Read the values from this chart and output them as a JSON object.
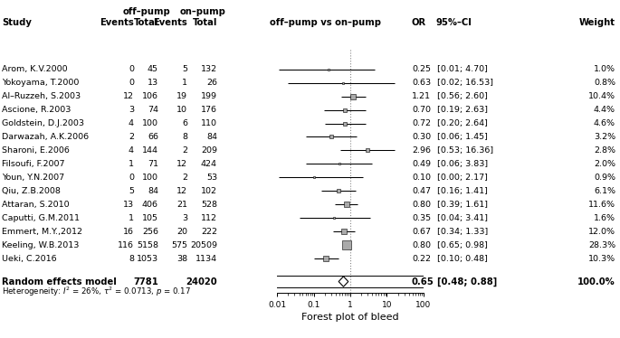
{
  "studies": [
    {
      "name": "Arom, K.V.2000",
      "off_events": 0,
      "off_total": 45,
      "on_events": 5,
      "on_total": 132,
      "or": 0.25,
      "ci_lo": 0.01,
      "ci_hi": 4.7,
      "weight": 1.0
    },
    {
      "name": "Yokoyama, T.2000",
      "off_events": 0,
      "off_total": 13,
      "on_events": 1,
      "on_total": 26,
      "or": 0.63,
      "ci_lo": 0.02,
      "ci_hi": 16.53,
      "weight": 0.8
    },
    {
      "name": "Al–Ruzzeh, S.2003",
      "off_events": 12,
      "off_total": 106,
      "on_events": 19,
      "on_total": 199,
      "or": 1.21,
      "ci_lo": 0.56,
      "ci_hi": 2.6,
      "weight": 10.4
    },
    {
      "name": "Ascione, R.2003",
      "off_events": 3,
      "off_total": 74,
      "on_events": 10,
      "on_total": 176,
      "or": 0.7,
      "ci_lo": 0.19,
      "ci_hi": 2.63,
      "weight": 4.4
    },
    {
      "name": "Goldstein, D.J.2003",
      "off_events": 4,
      "off_total": 100,
      "on_events": 6,
      "on_total": 110,
      "or": 0.72,
      "ci_lo": 0.2,
      "ci_hi": 2.64,
      "weight": 4.6
    },
    {
      "name": "Darwazah, A.K.2006",
      "off_events": 2,
      "off_total": 66,
      "on_events": 8,
      "on_total": 84,
      "or": 0.3,
      "ci_lo": 0.06,
      "ci_hi": 1.45,
      "weight": 3.2
    },
    {
      "name": "Sharoni, E.2006",
      "off_events": 4,
      "off_total": 144,
      "on_events": 2,
      "on_total": 209,
      "or": 2.96,
      "ci_lo": 0.53,
      "ci_hi": 16.36,
      "weight": 2.8
    },
    {
      "name": "Filsoufi, F.2007",
      "off_events": 1,
      "off_total": 71,
      "on_events": 12,
      "on_total": 424,
      "or": 0.49,
      "ci_lo": 0.06,
      "ci_hi": 3.83,
      "weight": 2.0
    },
    {
      "name": "Youn, Y.N.2007",
      "off_events": 0,
      "off_total": 100,
      "on_events": 2,
      "on_total": 53,
      "or": 0.1,
      "ci_lo": 0.001,
      "ci_hi": 2.17,
      "weight": 0.9
    },
    {
      "name": "Qiu, Z.B.2008",
      "off_events": 5,
      "off_total": 84,
      "on_events": 12,
      "on_total": 102,
      "or": 0.47,
      "ci_lo": 0.16,
      "ci_hi": 1.41,
      "weight": 6.1
    },
    {
      "name": "Attaran, S.2010",
      "off_events": 13,
      "off_total": 406,
      "on_events": 21,
      "on_total": 528,
      "or": 0.8,
      "ci_lo": 0.39,
      "ci_hi": 1.61,
      "weight": 11.6
    },
    {
      "name": "Caputti, G.M.2011",
      "off_events": 1,
      "off_total": 105,
      "on_events": 3,
      "on_total": 112,
      "or": 0.35,
      "ci_lo": 0.04,
      "ci_hi": 3.41,
      "weight": 1.6
    },
    {
      "name": "Emmert, M.Y.,2012",
      "off_events": 16,
      "off_total": 256,
      "on_events": 20,
      "on_total": 222,
      "or": 0.67,
      "ci_lo": 0.34,
      "ci_hi": 1.33,
      "weight": 12.0
    },
    {
      "name": "Keeling, W.B.2013",
      "off_events": 116,
      "off_total": 5158,
      "on_events": 575,
      "on_total": 20509,
      "or": 0.8,
      "ci_lo": 0.65,
      "ci_hi": 0.98,
      "weight": 28.3
    },
    {
      "name": "Ueki, C.2016",
      "off_events": 8,
      "off_total": 1053,
      "on_events": 38,
      "on_total": 1134,
      "or": 0.22,
      "ci_lo": 0.1,
      "ci_hi": 0.48,
      "weight": 10.3
    }
  ],
  "summary": {
    "or": 0.65,
    "ci_lo": 0.48,
    "ci_hi": 0.88,
    "weight": 100.0,
    "off_total": 7781,
    "on_total": 24020
  },
  "ci_display": [
    "[0.01; 4.70]",
    "[0.02; 16.53]",
    "[0.56; 2.60]",
    "[0.19; 2.63]",
    "[0.20; 2.64]",
    "[0.06; 1.45]",
    "[0.53; 16.36]",
    "[0.06; 3.83]",
    "[0.00; 2.17]",
    "[0.16; 1.41]",
    "[0.39; 1.61]",
    "[0.04; 3.41]",
    "[0.34; 1.33]",
    "[0.65; 0.98]",
    "[0.10; 0.48]"
  ],
  "or_display": [
    "0.25",
    "0.63",
    "1.21",
    "0.70",
    "0.72",
    "0.30",
    "2.96",
    "0.49",
    "0.10",
    "0.47",
    "0.80",
    "0.35",
    "0.67",
    "0.80",
    "0.22"
  ],
  "x_label": "Forest plot of bleed",
  "square_color": "#aaaaaa",
  "line_color": "black",
  "dotted_line_color": "#888888",
  "diamond_facecolor": "white",
  "diamond_edgecolor": "black",
  "xlim": [
    0.01,
    100
  ],
  "xticks": [
    0.01,
    0.1,
    1,
    10,
    100
  ],
  "xticklabels": [
    "0.01",
    "0.1",
    "1",
    "10",
    "100"
  ]
}
